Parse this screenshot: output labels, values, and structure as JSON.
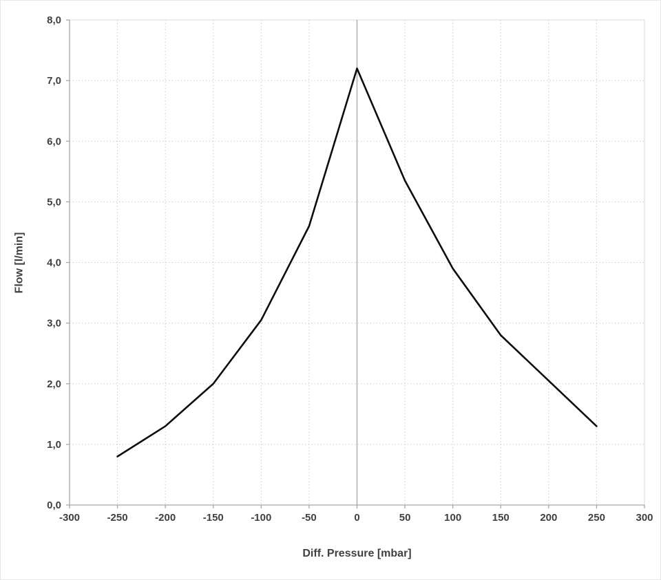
{
  "chart_data": {
    "type": "line",
    "title": "",
    "xlabel": "Diff. Pressure [mbar]",
    "ylabel": "Flow [l/min]",
    "xlim": [
      -300,
      300
    ],
    "ylim": [
      0,
      8
    ],
    "grid": true,
    "legend": false,
    "x": [
      -250,
      -200,
      -150,
      -100,
      -50,
      0,
      50,
      100,
      150,
      200,
      250
    ],
    "series": [
      {
        "name": "Flow",
        "values": [
          0.8,
          1.3,
          2.0,
          3.05,
          4.6,
          7.2,
          5.35,
          3.9,
          2.8,
          2.05,
          1.3
        ]
      }
    ],
    "x_ticks": [
      -300,
      -250,
      -200,
      -150,
      -100,
      -50,
      0,
      50,
      100,
      150,
      200,
      250,
      300
    ],
    "x_tick_labels": [
      "-300",
      "-250",
      "-200",
      "-150",
      "-100",
      "-50",
      "0",
      "50",
      "100",
      "150",
      "200",
      "250",
      "300"
    ],
    "y_ticks": [
      0,
      1,
      2,
      3,
      4,
      5,
      6,
      7,
      8
    ],
    "y_tick_labels": [
      "0,0",
      "1,0",
      "2,0",
      "3,0",
      "4,0",
      "5,0",
      "6,0",
      "7,0",
      "8,0"
    ],
    "colors": {
      "line": "#0d0d0d",
      "grid": "#c9c9c9",
      "zero_line": "#a6a6a6",
      "axis": "#a6a6a6",
      "plot_border": "#d9d9d9",
      "tick_label": "#404040"
    }
  }
}
